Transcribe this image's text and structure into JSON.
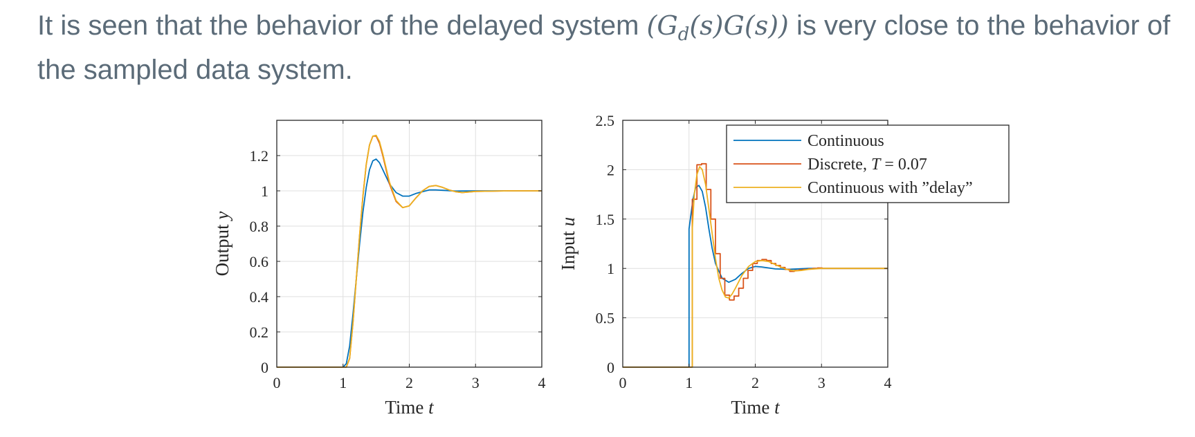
{
  "caption": {
    "before": "It is seen that the behavior of the delayed system ",
    "math_open": "(",
    "math_g1": "G",
    "math_sub": "d",
    "math_s1": "(s)",
    "math_g2": "G",
    "math_s2": "(s))",
    "after": " is very close to the behavior of the sampled data system."
  },
  "chart_data": [
    {
      "type": "line",
      "xlabel": "Time t",
      "ylabel": "Output y",
      "xlim": [
        0,
        4
      ],
      "ylim": [
        0,
        1.4
      ],
      "xticks": [
        "0",
        "1",
        "2",
        "3",
        "4"
      ],
      "yticks": [
        "0",
        "0.2",
        "0.4",
        "0.6",
        "0.8",
        "1",
        "1.2"
      ],
      "grid": true,
      "series": [
        {
          "name": "Continuous",
          "color": "#0072bd",
          "x": [
            0,
            1.0,
            1.05,
            1.1,
            1.15,
            1.2,
            1.25,
            1.3,
            1.35,
            1.4,
            1.45,
            1.5,
            1.55,
            1.6,
            1.7,
            1.8,
            1.9,
            2.0,
            2.1,
            2.2,
            2.3,
            2.4,
            2.5,
            2.7,
            3.0,
            3.5,
            4.0
          ],
          "y": [
            0,
            0,
            0.02,
            0.12,
            0.3,
            0.5,
            0.7,
            0.88,
            1.02,
            1.12,
            1.17,
            1.18,
            1.16,
            1.12,
            1.04,
            0.99,
            0.97,
            0.97,
            0.985,
            0.995,
            1.005,
            1.005,
            1.003,
            0.999,
            1.0,
            1.0,
            1.0
          ]
        },
        {
          "name": "Discrete, T = 0.07",
          "color": "#d95319",
          "x": [
            0,
            1.0,
            1.05,
            1.1,
            1.15,
            1.2,
            1.25,
            1.3,
            1.35,
            1.4,
            1.45,
            1.5,
            1.55,
            1.6,
            1.7,
            1.8,
            1.9,
            2.0,
            2.1,
            2.2,
            2.3,
            2.4,
            2.5,
            2.6,
            2.7,
            2.8,
            3.0,
            3.5,
            4.0
          ],
          "y": [
            0,
            0,
            0.0,
            0.05,
            0.25,
            0.5,
            0.75,
            0.97,
            1.15,
            1.26,
            1.31,
            1.31,
            1.27,
            1.2,
            1.04,
            0.94,
            0.905,
            0.915,
            0.96,
            1.0,
            1.025,
            1.03,
            1.02,
            1.005,
            0.995,
            0.99,
            0.997,
            1.0,
            1.0
          ]
        },
        {
          "name": "Continuous with \"delay\"",
          "color": "#edb120",
          "x": [
            0,
            1.0,
            1.05,
            1.1,
            1.15,
            1.2,
            1.25,
            1.3,
            1.35,
            1.4,
            1.45,
            1.5,
            1.55,
            1.6,
            1.7,
            1.8,
            1.9,
            2.0,
            2.1,
            2.2,
            2.3,
            2.4,
            2.5,
            2.6,
            2.7,
            2.8,
            3.0,
            3.5,
            4.0
          ],
          "y": [
            0,
            0,
            0.0,
            0.05,
            0.25,
            0.5,
            0.75,
            0.97,
            1.15,
            1.26,
            1.31,
            1.315,
            1.28,
            1.21,
            1.05,
            0.945,
            0.905,
            0.915,
            0.96,
            1.0,
            1.025,
            1.03,
            1.02,
            1.005,
            0.995,
            0.99,
            0.997,
            1.0,
            1.0
          ]
        }
      ]
    },
    {
      "type": "line",
      "xlabel": "Time t",
      "ylabel": "Input u",
      "xlim": [
        0,
        4
      ],
      "ylim": [
        0,
        2.5
      ],
      "xticks": [
        "0",
        "1",
        "2",
        "3",
        "4"
      ],
      "yticks": [
        "0",
        "0.5",
        "1",
        "1.5",
        "2",
        "2.5"
      ],
      "grid": true,
      "legend_position": "top-right",
      "series": [
        {
          "name": "Continuous",
          "color": "#0072bd",
          "x": [
            0,
            1.0,
            1.0,
            1.03,
            1.06,
            1.1,
            1.15,
            1.2,
            1.25,
            1.3,
            1.35,
            1.4,
            1.5,
            1.6,
            1.7,
            1.8,
            1.9,
            2.0,
            2.1,
            2.2,
            2.3,
            2.5,
            2.8,
            3.0,
            3.5,
            4.0
          ],
          "y": [
            0,
            0,
            1.4,
            1.55,
            1.7,
            1.82,
            1.84,
            1.78,
            1.62,
            1.4,
            1.2,
            1.05,
            0.9,
            0.86,
            0.89,
            0.95,
            1.0,
            1.02,
            1.015,
            1.005,
            0.995,
            0.99,
            1.0,
            1.0,
            1.0,
            1.0
          ]
        },
        {
          "name": "Discrete, T = 0.07",
          "color": "#d95319",
          "step": true,
          "x": [
            0,
            1.05,
            1.12,
            1.19,
            1.26,
            1.33,
            1.4,
            1.47,
            1.54,
            1.61,
            1.68,
            1.75,
            1.82,
            1.89,
            1.96,
            2.03,
            2.1,
            2.17,
            2.24,
            2.31,
            2.38,
            2.45,
            2.52,
            2.59,
            2.66,
            2.73,
            2.8,
            2.87,
            2.94,
            3.01,
            3.1,
            3.5,
            4.0
          ],
          "y": [
            0,
            1.7,
            2.05,
            2.06,
            1.8,
            1.5,
            1.15,
            0.9,
            0.73,
            0.68,
            0.72,
            0.8,
            0.9,
            0.98,
            1.05,
            1.08,
            1.09,
            1.08,
            1.05,
            1.03,
            1.01,
            0.99,
            0.97,
            0.98,
            0.985,
            0.99,
            0.995,
            1.0,
            1.005,
            1.0,
            1.0,
            1.0,
            1.0
          ]
        },
        {
          "name": "Continuous with \"delay\"",
          "color": "#edb120",
          "x": [
            0,
            1.05,
            1.05,
            1.08,
            1.12,
            1.16,
            1.2,
            1.25,
            1.3,
            1.35,
            1.4,
            1.45,
            1.5,
            1.55,
            1.6,
            1.65,
            1.7,
            1.8,
            1.9,
            2.0,
            2.1,
            2.2,
            2.3,
            2.4,
            2.5,
            2.6,
            2.7,
            2.8,
            3.0,
            3.5,
            4.0
          ],
          "y": [
            0,
            0,
            1.4,
            1.75,
            1.95,
            2.03,
            2.0,
            1.85,
            1.6,
            1.35,
            1.1,
            0.9,
            0.78,
            0.71,
            0.7,
            0.74,
            0.8,
            0.93,
            1.02,
            1.07,
            1.08,
            1.07,
            1.04,
            1.01,
            0.985,
            0.975,
            0.98,
            0.99,
            1.0,
            1.0,
            1.0
          ]
        }
      ]
    }
  ]
}
